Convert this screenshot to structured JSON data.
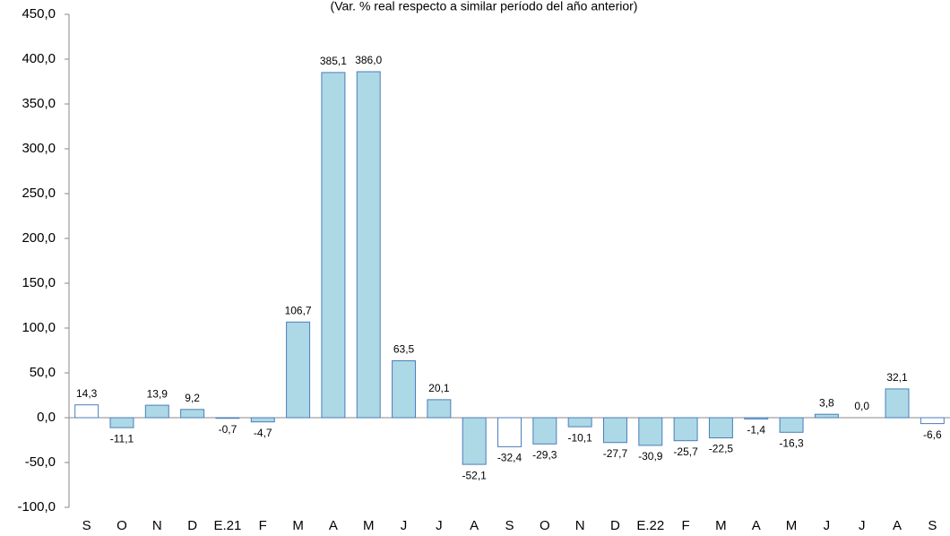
{
  "chart_data": {
    "type": "bar",
    "subtitle": "(Var. % real respecto a similar período del año anterior)",
    "categories": [
      "S",
      "O",
      "N",
      "D",
      "E.21",
      "F",
      "M",
      "A",
      "M",
      "J",
      "J",
      "A",
      "S",
      "O",
      "N",
      "D",
      "E.22",
      "F",
      "M",
      "A",
      "M",
      "J",
      "J",
      "A",
      "S"
    ],
    "values": [
      14.3,
      -11.1,
      13.9,
      9.2,
      -0.7,
      -4.7,
      106.7,
      385.1,
      386.0,
      63.5,
      20.1,
      -52.1,
      -32.4,
      -29.3,
      -10.1,
      -27.7,
      -30.9,
      -25.7,
      -22.5,
      -1.4,
      -16.3,
      3.8,
      0.0,
      32.1,
      -6.6
    ],
    "value_labels": [
      "14,3",
      "-11,1",
      "13,9",
      "9,2",
      "-0,7",
      "-4,7",
      "106,7",
      "385,1",
      "386,0",
      "63,5",
      "20,1",
      "-52,1",
      "-32,4",
      "-29,3",
      "-10,1",
      "-27,7",
      "-30,9",
      "-25,7",
      "-22,5",
      "-1,4",
      "-16,3",
      "3,8",
      "0,0",
      "32,1",
      "-6,6"
    ],
    "colors": [
      "#ffffff",
      "#add8e6",
      "#add8e6",
      "#add8e6",
      "#add8e6",
      "#add8e6",
      "#add8e6",
      "#add8e6",
      "#add8e6",
      "#add8e6",
      "#add8e6",
      "#add8e6",
      "#ffffff",
      "#add8e6",
      "#add8e6",
      "#add8e6",
      "#add8e6",
      "#add8e6",
      "#add8e6",
      "#add8e6",
      "#add8e6",
      "#add8e6",
      "#add8e6",
      "#add8e6",
      "#ffffff"
    ],
    "edge_color": "#4a7ebb",
    "ylim": [
      -100,
      450
    ],
    "yticks": [
      {
        "value": -100,
        "label": "-100,0"
      },
      {
        "value": -50,
        "label": "-50,0"
      },
      {
        "value": 0,
        "label": "0,0"
      },
      {
        "value": 50,
        "label": "50,0"
      },
      {
        "value": 100,
        "label": "100,0"
      },
      {
        "value": 150,
        "label": "150,0"
      },
      {
        "value": 200,
        "label": "200,0"
      },
      {
        "value": 250,
        "label": "250,0"
      },
      {
        "value": 300,
        "label": "300,0"
      },
      {
        "value": 350,
        "label": "350,0"
      },
      {
        "value": 400,
        "label": "400,0"
      },
      {
        "value": 450,
        "label": "450,0"
      }
    ],
    "grid": false
  }
}
